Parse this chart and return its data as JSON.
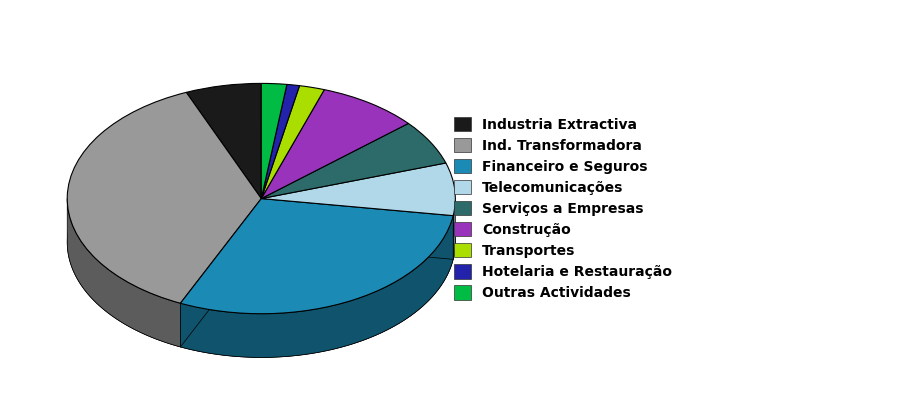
{
  "labels": [
    "Industria Extractiva",
    "Ind. Transformadora",
    "Financeiro e Seguros",
    "Telecomunicações",
    "Serviços a Empresas",
    "Construção",
    "Transportes",
    "Hotelaria e Restauração",
    "Outras Actividades"
  ],
  "values": [
    6,
    35,
    28,
    7,
    6,
    8,
    2,
    1,
    2
  ],
  "colors": [
    "#1a1a1a",
    "#999999",
    "#1b8ab5",
    "#b0d8e8",
    "#2d6b6b",
    "#9933bb",
    "#aadd00",
    "#2222aa",
    "#00bb44"
  ],
  "figsize": [
    9.01,
    4.17
  ],
  "dpi": 100,
  "startangle": 90,
  "background_color": "#ffffff",
  "legend_fontsize": 10
}
